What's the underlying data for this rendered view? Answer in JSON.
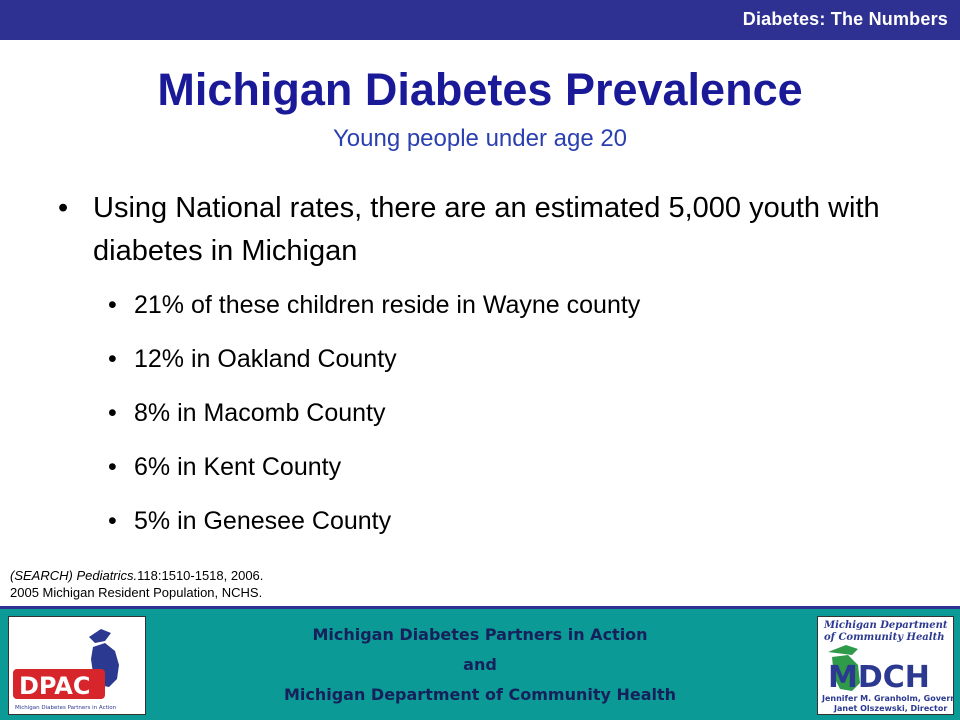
{
  "header": {
    "section_title": "Diabetes: The Numbers"
  },
  "slide": {
    "title": "Michigan Diabetes Prevalence",
    "subtitle": "Young people under age 20",
    "main_bullet": "Using National rates, there are an estimated 5,000 youth with diabetes in Michigan",
    "sub_bullets": [
      "21% of these children reside in Wayne county",
      "12% in Oakland County",
      "8% in Macomb County",
      "6% in Kent County",
      "5% in Genesee County"
    ],
    "bullet_char": "•",
    "citation": {
      "line1_italic": "(SEARCH) Pediatrics.",
      "line1_rest": "118:1510-1518, 2006.",
      "line2": "2005 Michigan Resident Population, NCHS."
    }
  },
  "footer": {
    "line1": "Michigan Diabetes Partners in Action",
    "line2": "and",
    "line3": "Michigan Department of Community Health"
  },
  "logos": {
    "dpac": {
      "name": "DPAC",
      "tagline": "Michigan Diabetes Partners in Action"
    },
    "mdch": {
      "header_line1": "Michigan Department",
      "header_line2": "of Community Health",
      "name": "MDCH",
      "caption_line1": "Jennifer M. Granholm, Governor",
      "caption_line2": "Janet Olszewski, Director"
    }
  },
  "colors": {
    "top_bar": "#2e3192",
    "title": "#1a1a99",
    "subtitle": "#2a3fb0",
    "footer": "#0b9a95",
    "dpac_red": "#d7262b",
    "dpac_blue": "#2b3990",
    "mdch_green": "#2e9a4a",
    "mdch_blue": "#2b3990"
  }
}
